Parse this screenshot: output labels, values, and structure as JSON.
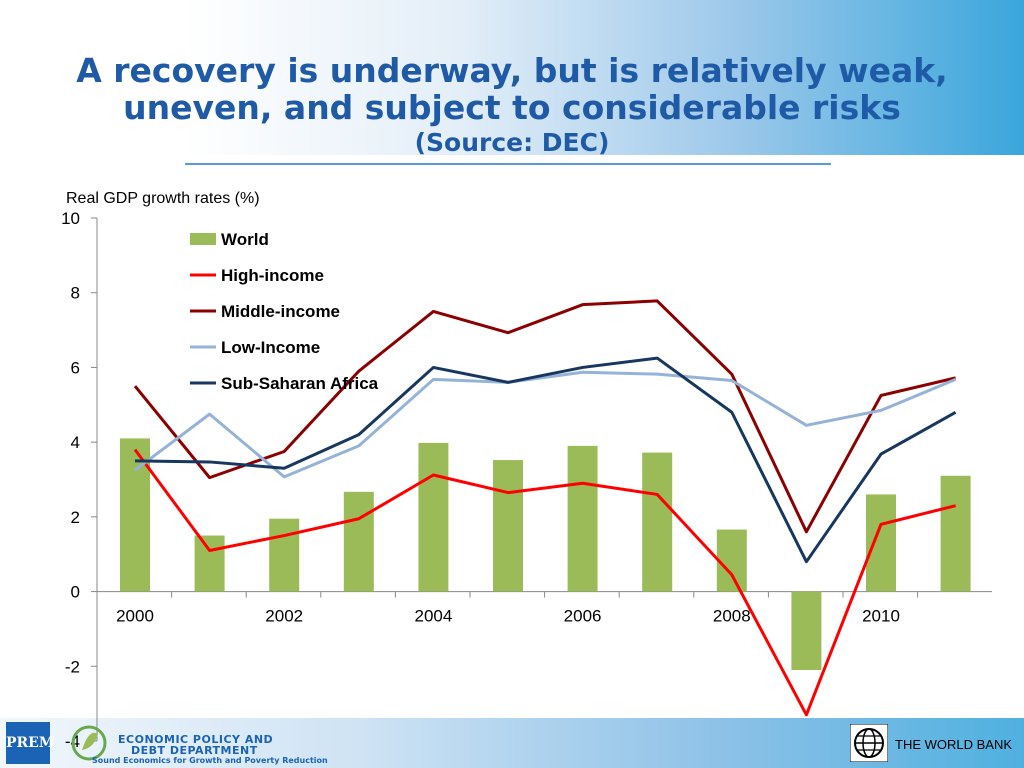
{
  "slide": {
    "title_line1": "A recovery is underway, but is relatively weak,",
    "title_line2": "uneven, and subject to considerable risks",
    "subtitle": "(Source: DEC)"
  },
  "footer": {
    "prem_logo_text": "PREM",
    "dept_line1": "ECONOMIC POLICY AND",
    "dept_line2": "DEBT DEPARTMENT",
    "dept_tagline": "Sound Economics for Growth and Poverty Reduction",
    "worldbank_label": "THE WORLD BANK"
  },
  "chart_data": {
    "type": "bar",
    "title": "",
    "ylabel": "Real GDP growth rates (%)",
    "xlabel": "",
    "ylim": [
      -4,
      10
    ],
    "yticks": [
      -4,
      -2,
      0,
      2,
      4,
      6,
      8,
      10
    ],
    "x": [
      2000,
      2001,
      2002,
      2003,
      2004,
      2005,
      2006,
      2007,
      2008,
      2009,
      2010,
      2011
    ],
    "x_tick_labels": [
      "2000",
      "2002",
      "2004",
      "2006",
      "2008",
      "2010"
    ],
    "x_tick_values": [
      2000,
      2002,
      2004,
      2006,
      2008,
      2010
    ],
    "grid": false,
    "legend_position": "top-left inside",
    "series": [
      {
        "name": "World",
        "type": "bar",
        "color": "#9bbb59",
        "values": [
          4.1,
          1.5,
          1.95,
          2.67,
          3.98,
          3.52,
          3.9,
          3.72,
          1.66,
          -2.1,
          2.6,
          3.1
        ]
      },
      {
        "name": "High-income",
        "type": "line",
        "color": "#ff0000",
        "values": [
          3.8,
          1.1,
          1.5,
          1.95,
          3.12,
          2.65,
          2.9,
          2.6,
          0.45,
          -3.3,
          1.8,
          2.3
        ]
      },
      {
        "name": "Middle-income",
        "type": "line",
        "color": "#8b0000",
        "values": [
          5.5,
          3.05,
          3.75,
          5.9,
          7.5,
          6.93,
          7.68,
          7.78,
          5.82,
          1.6,
          5.25,
          5.72
        ]
      },
      {
        "name": "Low-Income",
        "type": "line",
        "color": "#95b3d7",
        "values": [
          3.25,
          4.75,
          3.07,
          3.9,
          5.68,
          5.6,
          5.87,
          5.82,
          5.65,
          4.45,
          4.85,
          5.68
        ]
      },
      {
        "name": "Sub-Saharan Africa",
        "type": "line",
        "color": "#17375e",
        "values": [
          3.5,
          3.47,
          3.3,
          4.2,
          6.0,
          5.6,
          6.0,
          6.25,
          4.8,
          0.8,
          3.68,
          4.8
        ]
      }
    ]
  }
}
